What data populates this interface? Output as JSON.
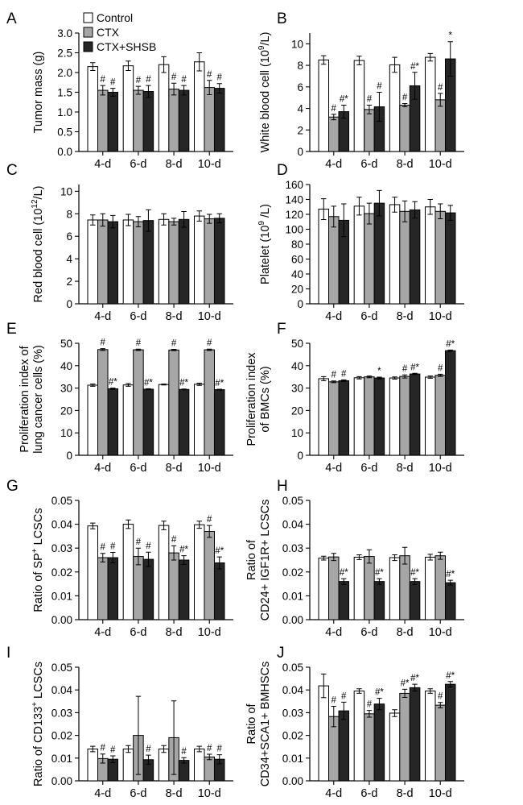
{
  "colors": {
    "control": "#ffffff",
    "ctx": "#a6a6a6",
    "ctx_shsb": "#262626",
    "stroke": "#000000"
  },
  "legend": {
    "entries": [
      "Control",
      "CTX",
      "CTX+SHSB"
    ]
  },
  "chart_data": [
    {
      "panel": "A",
      "type": "bar",
      "title": "",
      "ylabel": "Tumor mass (g)",
      "ylabel_sup": "",
      "ylabel_tail": "",
      "ylabel_lines": [],
      "categories": [
        "4-d",
        "6-d",
        "8-d",
        "10-d"
      ],
      "ylim": [
        0,
        3.0
      ],
      "yticks": [
        "0.0",
        "0.5",
        "1.0",
        "1.5",
        "2.0",
        "2.5",
        "3.0"
      ],
      "series": [
        {
          "name": "Control",
          "values": [
            2.15,
            2.17,
            2.2,
            2.27
          ],
          "errors": [
            0.1,
            0.12,
            0.2,
            0.23
          ],
          "annotations": [
            "",
            "",
            "",
            ""
          ]
        },
        {
          "name": "CTX",
          "values": [
            1.55,
            1.55,
            1.58,
            1.62
          ],
          "errors": [
            0.12,
            0.1,
            0.15,
            0.18
          ],
          "annotations": [
            "#",
            "#",
            "#",
            "#"
          ]
        },
        {
          "name": "CTX+SHSB",
          "values": [
            1.5,
            1.52,
            1.55,
            1.6
          ],
          "errors": [
            0.1,
            0.15,
            0.12,
            0.12
          ],
          "annotations": [
            "#",
            "#",
            "#",
            "#"
          ]
        }
      ]
    },
    {
      "panel": "B",
      "type": "bar",
      "title": "",
      "ylabel": "White blood cell (10",
      "ylabel_sup": "9",
      "ylabel_tail": "/L)",
      "ylabel_lines": [],
      "categories": [
        "4-d",
        "6-d",
        "8-d",
        "10-d"
      ],
      "ylim": [
        0,
        11
      ],
      "yticks": [
        "0",
        "2",
        "4",
        "6",
        "8",
        "10"
      ],
      "series": [
        {
          "name": "Control",
          "values": [
            8.5,
            8.45,
            8.05,
            8.75
          ],
          "errors": [
            0.4,
            0.4,
            0.7,
            0.35
          ],
          "annotations": [
            "",
            "",
            "",
            ""
          ]
        },
        {
          "name": "CTX",
          "values": [
            3.2,
            3.9,
            4.3,
            4.8
          ],
          "errors": [
            0.25,
            0.4,
            0.15,
            0.6
          ],
          "annotations": [
            "#",
            "#",
            "#",
            "#"
          ]
        },
        {
          "name": "CTX+SHSB",
          "values": [
            3.7,
            4.15,
            6.1,
            8.6
          ],
          "errors": [
            0.6,
            1.35,
            1.25,
            1.6
          ],
          "annotations": [
            "#*",
            "#",
            "#*",
            "*"
          ]
        }
      ]
    },
    {
      "panel": "C",
      "type": "bar",
      "title": "",
      "ylabel": "Red blood cell (10",
      "ylabel_sup": "12",
      "ylabel_tail": "/L)",
      "ylabel_lines": [],
      "categories": [
        "4-d",
        "6-d",
        "8-d",
        "10-d"
      ],
      "ylim": [
        0,
        10.6
      ],
      "yticks": [
        "0",
        "2",
        "4",
        "6",
        "8",
        "10"
      ],
      "series": [
        {
          "name": "Control",
          "values": [
            7.45,
            7.45,
            7.5,
            7.8
          ],
          "errors": [
            0.45,
            0.5,
            0.5,
            0.45
          ],
          "annotations": [
            "",
            "",
            "",
            ""
          ]
        },
        {
          "name": "CTX",
          "values": [
            7.45,
            7.3,
            7.3,
            7.55
          ],
          "errors": [
            0.55,
            0.45,
            0.3,
            0.4
          ],
          "annotations": [
            "",
            "",
            "",
            ""
          ]
        },
        {
          "name": "CTX+SHSB",
          "values": [
            7.3,
            7.4,
            7.5,
            7.6
          ],
          "errors": [
            0.55,
            0.95,
            0.7,
            0.4
          ],
          "annotations": [
            "",
            "",
            "",
            ""
          ]
        }
      ]
    },
    {
      "panel": "D",
      "type": "bar",
      "title": "",
      "ylabel": "Platelet (10",
      "ylabel_sup": "9",
      "ylabel_tail": " /L)",
      "ylabel_lines": [],
      "categories": [
        "4-d",
        "6-d",
        "8-d",
        "10-d"
      ],
      "ylim": [
        0,
        160
      ],
      "yticks": [
        "0",
        "20",
        "40",
        "60",
        "80",
        "100",
        "120",
        "140",
        "160"
      ],
      "series": [
        {
          "name": "Control",
          "values": [
            127,
            131,
            133,
            130
          ],
          "errors": [
            14,
            12,
            10,
            10
          ],
          "annotations": [
            "",
            "",
            "",
            ""
          ]
        },
        {
          "name": "CTX",
          "values": [
            117,
            121,
            124,
            124
          ],
          "errors": [
            14,
            14,
            14,
            10
          ],
          "annotations": [
            "",
            "",
            "",
            ""
          ]
        },
        {
          "name": "CTX+SHSB",
          "values": [
            112,
            135,
            126,
            122
          ],
          "errors": [
            22,
            17,
            11,
            10
          ],
          "annotations": [
            "",
            "",
            "",
            ""
          ]
        }
      ]
    },
    {
      "panel": "E",
      "type": "bar",
      "title": "",
      "ylabel": "",
      "ylabel_sup": "",
      "ylabel_tail": "",
      "ylabel_lines": [
        "Proliferation index of",
        "lung cancer cells (%)"
      ],
      "categories": [
        "4-d",
        "6-d",
        "8-d",
        "10-d"
      ],
      "ylim": [
        0,
        50
      ],
      "yticks": [
        "0",
        "10",
        "20",
        "30",
        "40",
        "50"
      ],
      "series": [
        {
          "name": "Control",
          "values": [
            31.3,
            31.4,
            31.6,
            31.7
          ],
          "errors": [
            0.5,
            0.6,
            0.2,
            0.5
          ],
          "annotations": [
            "",
            "",
            "",
            ""
          ]
        },
        {
          "name": "CTX",
          "values": [
            47.2,
            47.1,
            47.0,
            47.1
          ],
          "errors": [
            0.4,
            0.3,
            0.3,
            0.3
          ],
          "annotations": [
            "#",
            "#",
            "#",
            "#"
          ]
        },
        {
          "name": "CTX+SHSB",
          "values": [
            29.7,
            29.5,
            29.4,
            29.3
          ],
          "errors": [
            0.3,
            0.2,
            0.2,
            0.2
          ],
          "annotations": [
            "#*",
            "#*",
            "#*",
            "#*"
          ]
        }
      ]
    },
    {
      "panel": "F",
      "type": "bar",
      "title": "",
      "ylabel": "",
      "ylabel_sup": "",
      "ylabel_tail": "",
      "ylabel_lines": [
        "Proliferation index",
        "of BMCs (%)"
      ],
      "categories": [
        "4-d",
        "6-d",
        "8-d",
        "10-d"
      ],
      "ylim": [
        0,
        50
      ],
      "yticks": [
        "0",
        "10",
        "20",
        "30",
        "40",
        "50"
      ],
      "series": [
        {
          "name": "Control",
          "values": [
            34.2,
            34.6,
            34.5,
            34.9
          ],
          "errors": [
            0.9,
            0.5,
            0.5,
            0.5
          ],
          "annotations": [
            "",
            "",
            "",
            ""
          ]
        },
        {
          "name": "CTX",
          "values": [
            32.8,
            35.0,
            35.2,
            35.7
          ],
          "errors": [
            0.4,
            0.4,
            0.7,
            0.5
          ],
          "annotations": [
            "#",
            "",
            "#",
            "#"
          ]
        },
        {
          "name": "CTX+SHSB",
          "values": [
            33.3,
            34.5,
            36.3,
            46.7
          ],
          "errors": [
            0.4,
            0.4,
            0.3,
            0.3
          ],
          "annotations": [
            "#",
            "*",
            "#*",
            "#*"
          ]
        }
      ]
    },
    {
      "panel": "G",
      "type": "bar",
      "title": "",
      "ylabel": "Ratio of SP",
      "ylabel_sup": "+",
      "ylabel_tail": " LCSCs",
      "ylabel_lines": [],
      "categories": [
        "4-d",
        "6-d",
        "8-d",
        "10-d"
      ],
      "ylim": [
        0,
        0.05
      ],
      "yticks": [
        "0.00",
        "0.01",
        "0.02",
        "0.03",
        "0.04",
        "0.05"
      ],
      "series": [
        {
          "name": "Control",
          "values": [
            0.0393,
            0.04,
            0.0395,
            0.0398
          ],
          "errors": [
            0.0012,
            0.0018,
            0.0018,
            0.0015
          ],
          "annotations": [
            "",
            "",
            "",
            ""
          ]
        },
        {
          "name": "CTX",
          "values": [
            0.026,
            0.0265,
            0.028,
            0.037
          ],
          "errors": [
            0.0018,
            0.0035,
            0.003,
            0.0025
          ],
          "annotations": [
            "#",
            "#",
            "#",
            "#"
          ]
        },
        {
          "name": "CTX+SHSB",
          "values": [
            0.026,
            0.0253,
            0.025,
            0.0238
          ],
          "errors": [
            0.0022,
            0.003,
            0.0018,
            0.0025
          ],
          "annotations": [
            "#",
            "#",
            "#*",
            "#*"
          ]
        }
      ]
    },
    {
      "panel": "H",
      "type": "bar",
      "title": "",
      "ylabel": "",
      "ylabel_sup": "",
      "ylabel_tail": "",
      "ylabel_lines": [
        "Ratio of",
        "CD24+ IGF1R+ LCSCs"
      ],
      "categories": [
        "4-d",
        "6-d",
        "8-d",
        "10-d"
      ],
      "ylim": [
        0,
        0.05
      ],
      "yticks": [
        "0.00",
        "0.01",
        "0.02",
        "0.03",
        "0.04",
        "0.05"
      ],
      "series": [
        {
          "name": "Control",
          "values": [
            0.0258,
            0.0262,
            0.026,
            0.0262
          ],
          "errors": [
            0.0008,
            0.001,
            0.0012,
            0.0012
          ],
          "annotations": [
            "",
            "",
            "",
            ""
          ]
        },
        {
          "name": "CTX",
          "values": [
            0.0263,
            0.0265,
            0.0268,
            0.0268
          ],
          "errors": [
            0.0015,
            0.0028,
            0.0035,
            0.0015
          ],
          "annotations": [
            "",
            "",
            "",
            ""
          ]
        },
        {
          "name": "CTX+SHSB",
          "values": [
            0.016,
            0.016,
            0.016,
            0.0155
          ],
          "errors": [
            0.0012,
            0.0012,
            0.0012,
            0.001
          ],
          "annotations": [
            "#*",
            "#*",
            "#*",
            "#*"
          ]
        }
      ]
    },
    {
      "panel": "I",
      "type": "bar",
      "title": "",
      "ylabel": "Ratio of CD133",
      "ylabel_sup": "+",
      "ylabel_tail": " LCSCs",
      "ylabel_lines": [],
      "categories": [
        "4-d",
        "6-d",
        "8-d",
        "10-d"
      ],
      "ylim": [
        0,
        0.05
      ],
      "yticks": [
        "0.00",
        "0.01",
        "0.02",
        "0.03",
        "0.04",
        "0.05"
      ],
      "series": [
        {
          "name": "Control",
          "values": [
            0.014,
            0.014,
            0.014,
            0.014
          ],
          "errors": [
            0.0012,
            0.0015,
            0.0015,
            0.0012
          ],
          "annotations": [
            "",
            "",
            "",
            ""
          ]
        },
        {
          "name": "CTX",
          "values": [
            0.0098,
            0.02,
            0.019,
            0.0105
          ],
          "errors": [
            0.002,
            0.0172,
            0.0162,
            0.0012
          ],
          "annotations": [
            "#",
            "",
            "",
            "#"
          ]
        },
        {
          "name": "CTX+SHSB",
          "values": [
            0.0095,
            0.0093,
            0.009,
            0.0095
          ],
          "errors": [
            0.0015,
            0.002,
            0.0012,
            0.002
          ],
          "annotations": [
            "#",
            "#",
            "#",
            "#"
          ]
        }
      ]
    },
    {
      "panel": "J",
      "type": "bar",
      "title": "",
      "ylabel": "",
      "ylabel_sup": "",
      "ylabel_tail": "",
      "ylabel_lines": [
        "Ratio of",
        "CD34+SCA1+ BMHSCs"
      ],
      "categories": [
        "4-d",
        "6-d",
        "8-d",
        "10-d"
      ],
      "ylim": [
        0,
        0.05
      ],
      "yticks": [
        "0.00",
        "0.01",
        "0.02",
        "0.03",
        "0.04",
        "0.05"
      ],
      "series": [
        {
          "name": "Control",
          "values": [
            0.0418,
            0.0395,
            0.0298,
            0.0395
          ],
          "errors": [
            0.0052,
            0.001,
            0.0015,
            0.001
          ],
          "annotations": [
            "",
            "",
            "",
            ""
          ]
        },
        {
          "name": "CTX",
          "values": [
            0.0283,
            0.0295,
            0.0385,
            0.0333
          ],
          "errors": [
            0.0045,
            0.0015,
            0.0018,
            0.0012
          ],
          "annotations": [
            "#",
            "#",
            "#*",
            "#"
          ]
        },
        {
          "name": "CTX+SHSB",
          "values": [
            0.0308,
            0.0338,
            0.041,
            0.0425
          ],
          "errors": [
            0.0038,
            0.0025,
            0.0015,
            0.0012
          ],
          "annotations": [
            "#",
            "#*",
            "#*",
            "#*"
          ]
        }
      ]
    }
  ]
}
